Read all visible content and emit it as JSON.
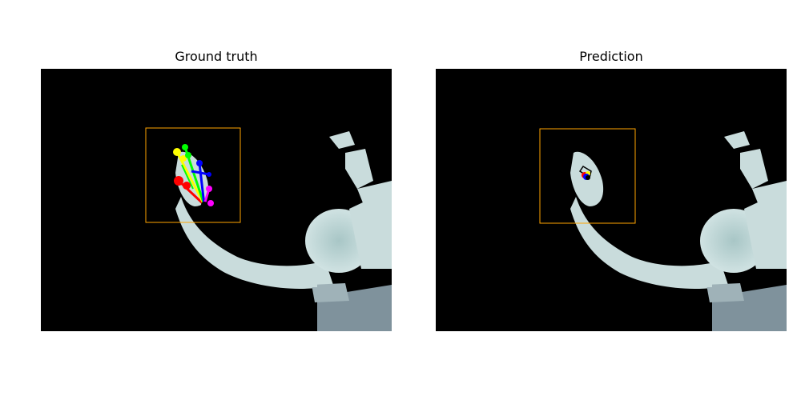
{
  "panels": [
    {
      "title": "Ground truth"
    },
    {
      "title": "Prediction"
    }
  ],
  "colors": {
    "background": "#000000",
    "depth_light": "#c8dcdc",
    "depth_dark": "#7a8c98",
    "bbox": "#ffa500",
    "joints": [
      "#ff0000",
      "#ffff00",
      "#00ff00",
      "#0000ff",
      "#ff00ff"
    ]
  }
}
